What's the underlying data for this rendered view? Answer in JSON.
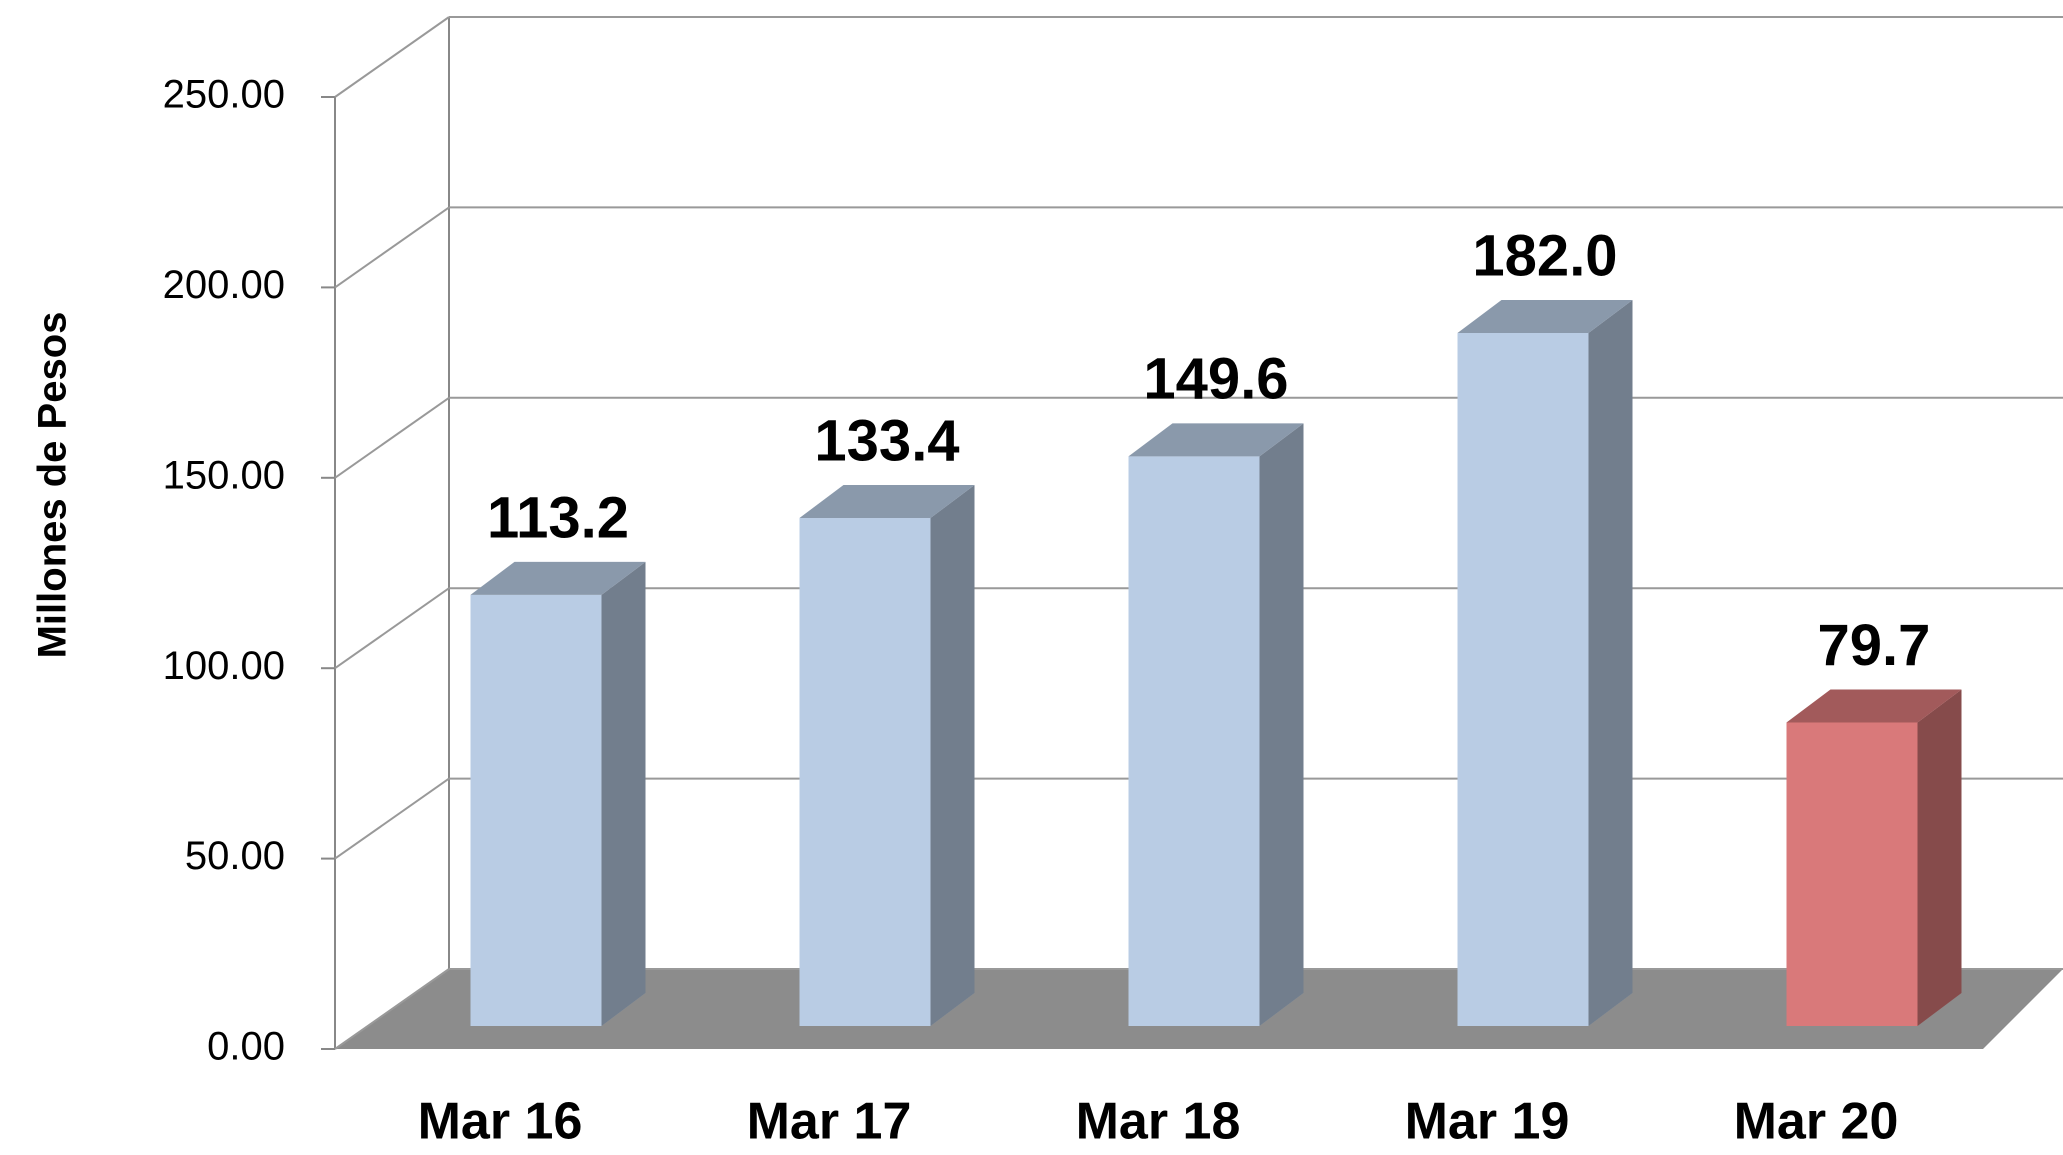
{
  "chart_data": {
    "type": "bar3d",
    "y_label": "Millones de Pesos",
    "categories": [
      "Mar 16",
      "Mar 17",
      "Mar 18",
      "Mar 19",
      "Mar 20"
    ],
    "values": [
      113.2,
      133.4,
      149.6,
      182.0,
      79.7
    ],
    "value_labels": [
      "113.2",
      "133.4",
      "149.6",
      "182.0",
      "79.7"
    ],
    "colors": [
      "#b9cce4",
      "#b9cce4",
      "#b9cce4",
      "#b9cce4",
      "#d9797a"
    ],
    "ylim": [
      0,
      250
    ],
    "yticks": [
      {
        "value": 0,
        "label": "0.00"
      },
      {
        "value": 50,
        "label": "50.00"
      },
      {
        "value": 100,
        "label": "100.00"
      },
      {
        "value": 150,
        "label": "150.00"
      },
      {
        "value": 200,
        "label": "200.00"
      },
      {
        "value": 250,
        "label": "250.00"
      }
    ],
    "grid": true
  }
}
